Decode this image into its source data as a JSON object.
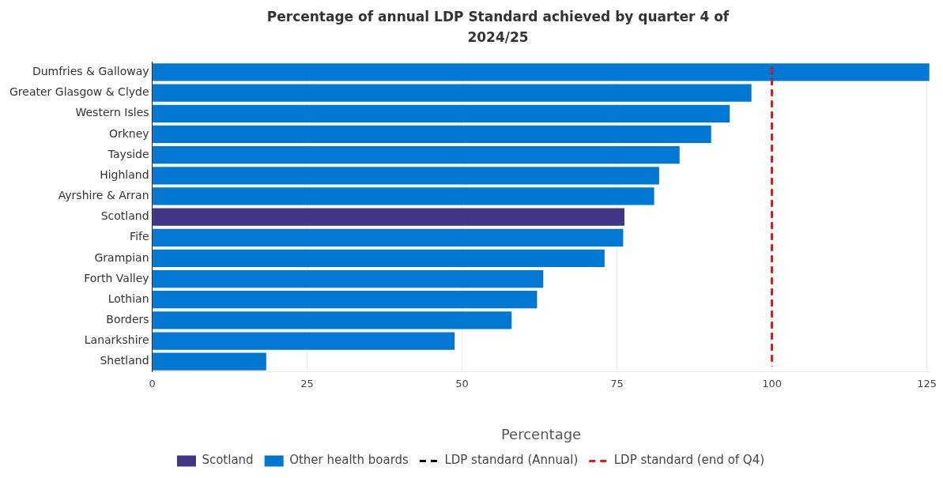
{
  "chart_data": {
    "type": "bar",
    "orientation": "horizontal",
    "title": "Percentage of annual LDP Standard achieved by quarter 4 of 2024/25",
    "xlabel": "Percentage",
    "categories": [
      "Dumfries & Galloway",
      "Greater Glasgow & Clyde",
      "Western Isles",
      "Orkney",
      "Tayside",
      "Highland",
      "Ayrshire & Arran",
      "Scotland",
      "Fife",
      "Grampian",
      "Forth Valley",
      "Lothian",
      "Borders",
      "Lanarkshire",
      "Shetland"
    ],
    "series": [
      {
        "name": "Scotland",
        "color": "#3f3685",
        "values": [
          null,
          null,
          null,
          null,
          null,
          null,
          null,
          76.2,
          null,
          null,
          null,
          null,
          null,
          null,
          null
        ]
      },
      {
        "name": "Other health boards",
        "color": "#0078d4",
        "values": [
          125.4,
          96.7,
          93.2,
          90.2,
          85.1,
          81.8,
          81.0,
          null,
          76.0,
          73.0,
          63.1,
          62.1,
          58.0,
          48.8,
          18.4
        ]
      }
    ],
    "ref_lines": [
      {
        "axis": "x",
        "value": 100,
        "label": "LDP standard (Annual)",
        "color": "#000000",
        "line_style": "dashed"
      },
      {
        "axis": "x",
        "value": 100,
        "label": "LDP standard (end of Q4)",
        "color": "#e41a1c",
        "line_style": "dashed"
      }
    ],
    "xlim": [
      0,
      125.5
    ],
    "xticks": [
      0,
      25,
      50,
      75,
      100,
      125
    ],
    "grid": "x",
    "legend": "bottom"
  }
}
